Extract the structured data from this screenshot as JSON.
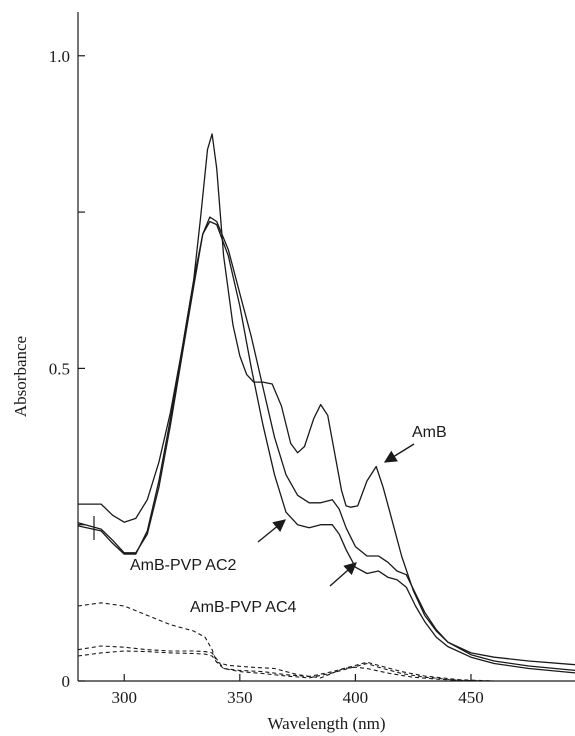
{
  "chart_data": {
    "type": "line",
    "title": "",
    "xlabel": "Wavelength (nm)",
    "ylabel": "Absorbance",
    "xlim": [
      280,
      495
    ],
    "ylim": [
      0,
      1.07
    ],
    "xticks": [
      300,
      350,
      400,
      450
    ],
    "xtick_labels": [
      "300",
      "350",
      "400",
      "450"
    ],
    "yticks": [
      0,
      0.25,
      0.5,
      0.75,
      1.0
    ],
    "ytick_labels": [
      "0",
      "",
      "0.5",
      "",
      "1.0"
    ],
    "series": [
      {
        "name": "AmB",
        "style": "solid",
        "points": [
          [
            280,
            0.283
          ],
          [
            290,
            0.283
          ],
          [
            295,
            0.265
          ],
          [
            300,
            0.254
          ],
          [
            305,
            0.26
          ],
          [
            310,
            0.29
          ],
          [
            315,
            0.35
          ],
          [
            320,
            0.43
          ],
          [
            325,
            0.53
          ],
          [
            330,
            0.64
          ],
          [
            333,
            0.74
          ],
          [
            336,
            0.85
          ],
          [
            338,
            0.875
          ],
          [
            340,
            0.82
          ],
          [
            343,
            0.68
          ],
          [
            347,
            0.57
          ],
          [
            350,
            0.52
          ],
          [
            353,
            0.49
          ],
          [
            356,
            0.478
          ],
          [
            360,
            0.478
          ],
          [
            364,
            0.475
          ],
          [
            368,
            0.44
          ],
          [
            372,
            0.38
          ],
          [
            375,
            0.365
          ],
          [
            378,
            0.375
          ],
          [
            382,
            0.42
          ],
          [
            385,
            0.442
          ],
          [
            388,
            0.425
          ],
          [
            391,
            0.365
          ],
          [
            394,
            0.305
          ],
          [
            396,
            0.28
          ],
          [
            398,
            0.278
          ],
          [
            401,
            0.28
          ],
          [
            405,
            0.32
          ],
          [
            409,
            0.343
          ],
          [
            412,
            0.31
          ],
          [
            416,
            0.255
          ],
          [
            420,
            0.2
          ],
          [
            425,
            0.145
          ],
          [
            430,
            0.105
          ],
          [
            435,
            0.08
          ],
          [
            440,
            0.062
          ],
          [
            450,
            0.045
          ],
          [
            460,
            0.038
          ],
          [
            475,
            0.032
          ],
          [
            495,
            0.026
          ]
        ]
      },
      {
        "name": "AmB-PVP AC2",
        "style": "solid",
        "points": [
          [
            280,
            0.253
          ],
          [
            290,
            0.243
          ],
          [
            295,
            0.225
          ],
          [
            300,
            0.205
          ],
          [
            305,
            0.205
          ],
          [
            310,
            0.235
          ],
          [
            315,
            0.31
          ],
          [
            320,
            0.41
          ],
          [
            325,
            0.52
          ],
          [
            330,
            0.63
          ],
          [
            334,
            0.715
          ],
          [
            337,
            0.742
          ],
          [
            340,
            0.735
          ],
          [
            345,
            0.69
          ],
          [
            350,
            0.62
          ],
          [
            355,
            0.55
          ],
          [
            360,
            0.47
          ],
          [
            365,
            0.39
          ],
          [
            370,
            0.33
          ],
          [
            375,
            0.297
          ],
          [
            380,
            0.285
          ],
          [
            385,
            0.285
          ],
          [
            390,
            0.29
          ],
          [
            393,
            0.275
          ],
          [
            396,
            0.245
          ],
          [
            400,
            0.215
          ],
          [
            405,
            0.2
          ],
          [
            410,
            0.2
          ],
          [
            414,
            0.19
          ],
          [
            418,
            0.176
          ],
          [
            422,
            0.17
          ],
          [
            426,
            0.14
          ],
          [
            430,
            0.11
          ],
          [
            435,
            0.082
          ],
          [
            440,
            0.062
          ],
          [
            450,
            0.042
          ],
          [
            460,
            0.032
          ],
          [
            475,
            0.024
          ],
          [
            495,
            0.017
          ]
        ]
      },
      {
        "name": "AmB-PVP AC4",
        "style": "solid",
        "points": [
          [
            280,
            0.248
          ],
          [
            290,
            0.24
          ],
          [
            295,
            0.22
          ],
          [
            300,
            0.203
          ],
          [
            305,
            0.203
          ],
          [
            310,
            0.24
          ],
          [
            315,
            0.32
          ],
          [
            320,
            0.42
          ],
          [
            325,
            0.53
          ],
          [
            330,
            0.64
          ],
          [
            334,
            0.715
          ],
          [
            337,
            0.735
          ],
          [
            340,
            0.73
          ],
          [
            345,
            0.68
          ],
          [
            350,
            0.6
          ],
          [
            355,
            0.5
          ],
          [
            360,
            0.41
          ],
          [
            365,
            0.33
          ],
          [
            370,
            0.27
          ],
          [
            375,
            0.25
          ],
          [
            380,
            0.245
          ],
          [
            385,
            0.25
          ],
          [
            390,
            0.25
          ],
          [
            393,
            0.235
          ],
          [
            396,
            0.21
          ],
          [
            400,
            0.182
          ],
          [
            405,
            0.172
          ],
          [
            410,
            0.176
          ],
          [
            414,
            0.166
          ],
          [
            418,
            0.162
          ],
          [
            422,
            0.15
          ],
          [
            426,
            0.12
          ],
          [
            430,
            0.095
          ],
          [
            435,
            0.07
          ],
          [
            440,
            0.055
          ],
          [
            450,
            0.038
          ],
          [
            460,
            0.028
          ],
          [
            475,
            0.02
          ],
          [
            495,
            0.013
          ]
        ]
      },
      {
        "name": "",
        "style": "dashed",
        "points": [
          [
            280,
            0.12
          ],
          [
            290,
            0.125
          ],
          [
            300,
            0.12
          ],
          [
            310,
            0.105
          ],
          [
            320,
            0.09
          ],
          [
            330,
            0.08
          ],
          [
            335,
            0.07
          ],
          [
            338,
            0.05
          ],
          [
            340,
            0.03
          ],
          [
            345,
            0.025
          ],
          [
            355,
            0.022
          ],
          [
            365,
            0.02
          ],
          [
            375,
            0.01
          ],
          [
            385,
            0.005
          ],
          [
            395,
            0.02
          ],
          [
            400,
            0.022
          ],
          [
            405,
            0.02
          ],
          [
            415,
            0.012
          ],
          [
            425,
            0.006
          ],
          [
            435,
            0.003
          ],
          [
            450,
            0
          ]
        ]
      },
      {
        "name": "",
        "style": "dashed",
        "points": [
          [
            280,
            0.05
          ],
          [
            290,
            0.056
          ],
          [
            300,
            0.054
          ],
          [
            310,
            0.05
          ],
          [
            320,
            0.048
          ],
          [
            330,
            0.048
          ],
          [
            335,
            0.047
          ],
          [
            338,
            0.045
          ],
          [
            340,
            0.035
          ],
          [
            343,
            0.02
          ],
          [
            350,
            0.017
          ],
          [
            360,
            0.015
          ],
          [
            370,
            0.01
          ],
          [
            380,
            0.007
          ],
          [
            390,
            0.015
          ],
          [
            400,
            0.025
          ],
          [
            405,
            0.03
          ],
          [
            410,
            0.025
          ],
          [
            420,
            0.015
          ],
          [
            430,
            0.008
          ],
          [
            445,
            0.002
          ],
          [
            460,
            0
          ]
        ]
      },
      {
        "name": "",
        "style": "dashed",
        "points": [
          [
            280,
            0.04
          ],
          [
            290,
            0.045
          ],
          [
            300,
            0.048
          ],
          [
            310,
            0.047
          ],
          [
            320,
            0.045
          ],
          [
            330,
            0.044
          ],
          [
            335,
            0.043
          ],
          [
            338,
            0.04
          ],
          [
            340,
            0.03
          ],
          [
            343,
            0.02
          ],
          [
            350,
            0.015
          ],
          [
            360,
            0.012
          ],
          [
            370,
            0.008
          ],
          [
            380,
            0.005
          ],
          [
            390,
            0.013
          ],
          [
            400,
            0.023
          ],
          [
            405,
            0.028
          ],
          [
            410,
            0.022
          ],
          [
            420,
            0.012
          ],
          [
            430,
            0.006
          ],
          [
            445,
            0.001
          ],
          [
            460,
            0
          ]
        ]
      }
    ],
    "annotations": [
      {
        "text": "AmB",
        "target_series": "AmB"
      },
      {
        "text": "AmB-PVP AC2",
        "target_series": "AmB-PVP AC2"
      },
      {
        "text": "AmB-PVP AC4",
        "target_series": "AmB-PVP AC4"
      }
    ],
    "grid": false,
    "legend": "none"
  }
}
